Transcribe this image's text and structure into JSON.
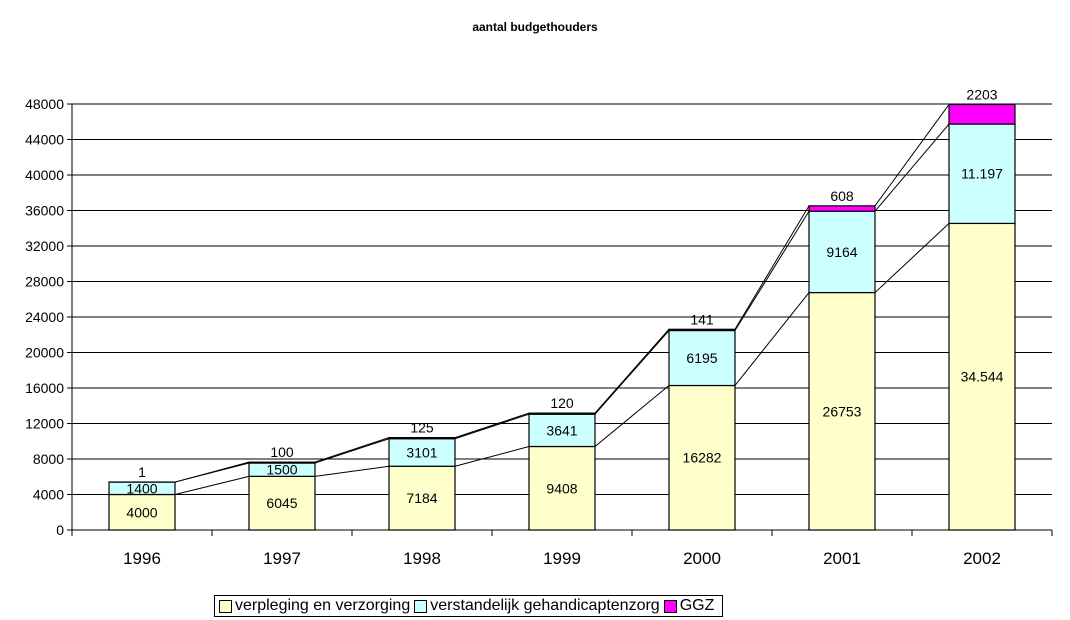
{
  "chart_data": {
    "type": "bar",
    "stacked": true,
    "title": "aantal budgethouders",
    "xlabel": "",
    "ylabel": "",
    "ylim": [
      0,
      48000
    ],
    "yticks": [
      "0",
      "4000",
      "8000",
      "12000",
      "16000",
      "20000",
      "24000",
      "28000",
      "32000",
      "36000",
      "40000",
      "44000",
      "48000"
    ],
    "grid": true,
    "legend_position": "bottom",
    "categories": [
      "1996",
      "1997",
      "1998",
      "1999",
      "2000",
      "2001",
      "2002"
    ],
    "series": [
      {
        "name": "verpleging en verzorging",
        "color": "#FFFFCC",
        "values": [
          4000,
          6045,
          7184,
          9408,
          16282,
          26753,
          34544
        ],
        "labels": [
          "4000",
          "6045",
          "7184",
          "9408",
          "16282",
          "26753",
          "34.544"
        ]
      },
      {
        "name": "verstandelijk gehandicaptenzorg",
        "color": "#CCFFFF",
        "values": [
          1400,
          1500,
          3101,
          3641,
          6195,
          9164,
          11197
        ],
        "labels": [
          "1400",
          "1500",
          "3101",
          "3641",
          "6195",
          "9164",
          "11.197"
        ]
      },
      {
        "name": "GGZ",
        "color": "#FF00FF",
        "values": [
          1,
          100,
          125,
          120,
          141,
          608,
          2203
        ],
        "labels": [
          "1",
          "100",
          "125",
          "120",
          "141",
          "608",
          "2203"
        ]
      }
    ]
  }
}
